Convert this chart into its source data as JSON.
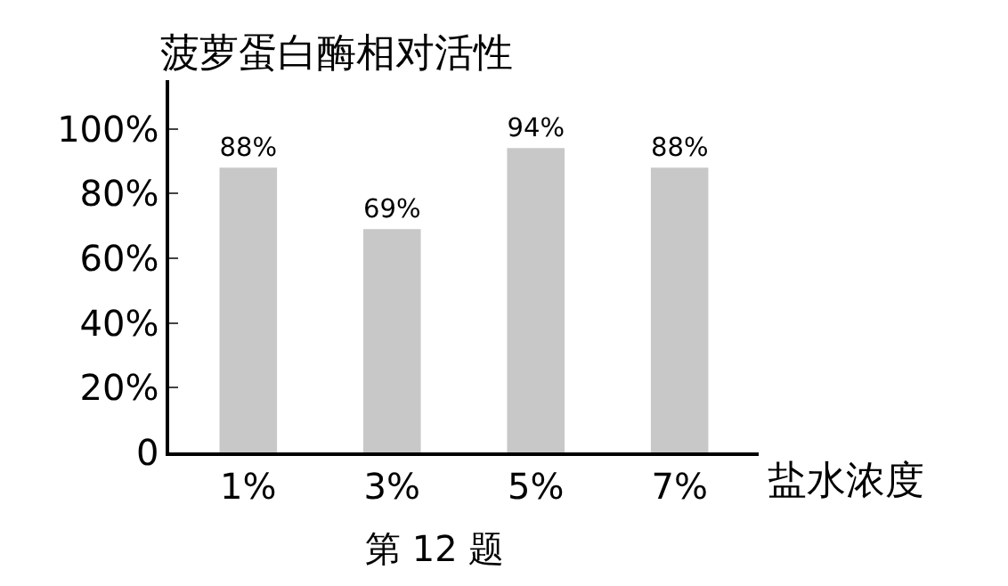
{
  "chart_data": {
    "type": "bar",
    "ylabel": "菠萝蛋白酶相对活性",
    "xlabel": "盐水浓度",
    "categories": [
      "1%",
      "3%",
      "5%",
      "7%"
    ],
    "values": [
      88,
      69,
      94,
      88
    ],
    "value_labels": [
      "88%",
      "69%",
      "94%",
      "88%"
    ],
    "color": "#c8c8c8",
    "ylim": [
      0,
      115
    ],
    "yticks": [
      0,
      {
        "value": 20,
        "label": "20%"
      },
      {
        "value": 40,
        "label": "40%"
      },
      {
        "value": 60,
        "label": "60%"
      },
      {
        "value": 80,
        "label": "80%"
      },
      {
        "value": 100,
        "label": "100%"
      }
    ],
    "annotations": [
      "第 12 题"
    ]
  }
}
